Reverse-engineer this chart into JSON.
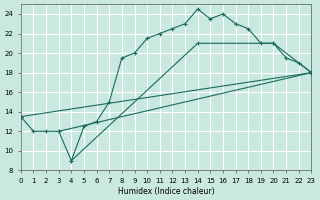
{
  "xlabel": "Humidex (Indice chaleur)",
  "bg_color": "#c8e8e0",
  "grid_color": "#ffffff",
  "line_color": "#1a6b5a",
  "xlim": [
    0,
    23
  ],
  "ylim": [
    8,
    25
  ],
  "xticks": [
    0,
    1,
    2,
    3,
    4,
    5,
    6,
    7,
    8,
    9,
    10,
    11,
    12,
    13,
    14,
    15,
    16,
    17,
    18,
    19,
    20,
    21,
    22,
    23
  ],
  "yticks": [
    8,
    10,
    12,
    14,
    16,
    18,
    20,
    22,
    24
  ],
  "line1": {
    "x": [
      0,
      1,
      2,
      3,
      4,
      5,
      6,
      7,
      8,
      9,
      10,
      11,
      12,
      13,
      14,
      15,
      16,
      17,
      18,
      19,
      20,
      21,
      22,
      23
    ],
    "y": [
      13.5,
      12,
      12,
      12,
      9,
      12.5,
      13,
      15,
      19.5,
      20,
      21.5,
      22,
      22.5,
      23,
      24.5,
      23.5,
      24,
      23,
      22.5,
      21,
      21,
      19.5,
      19,
      18
    ]
  },
  "line2": {
    "x": [
      0,
      23
    ],
    "y": [
      13.5,
      18
    ]
  },
  "line3": {
    "x": [
      3,
      23
    ],
    "y": [
      12,
      18
    ]
  },
  "line4": {
    "x": [
      4,
      14,
      20,
      23
    ],
    "y": [
      9,
      21,
      21,
      18
    ]
  }
}
